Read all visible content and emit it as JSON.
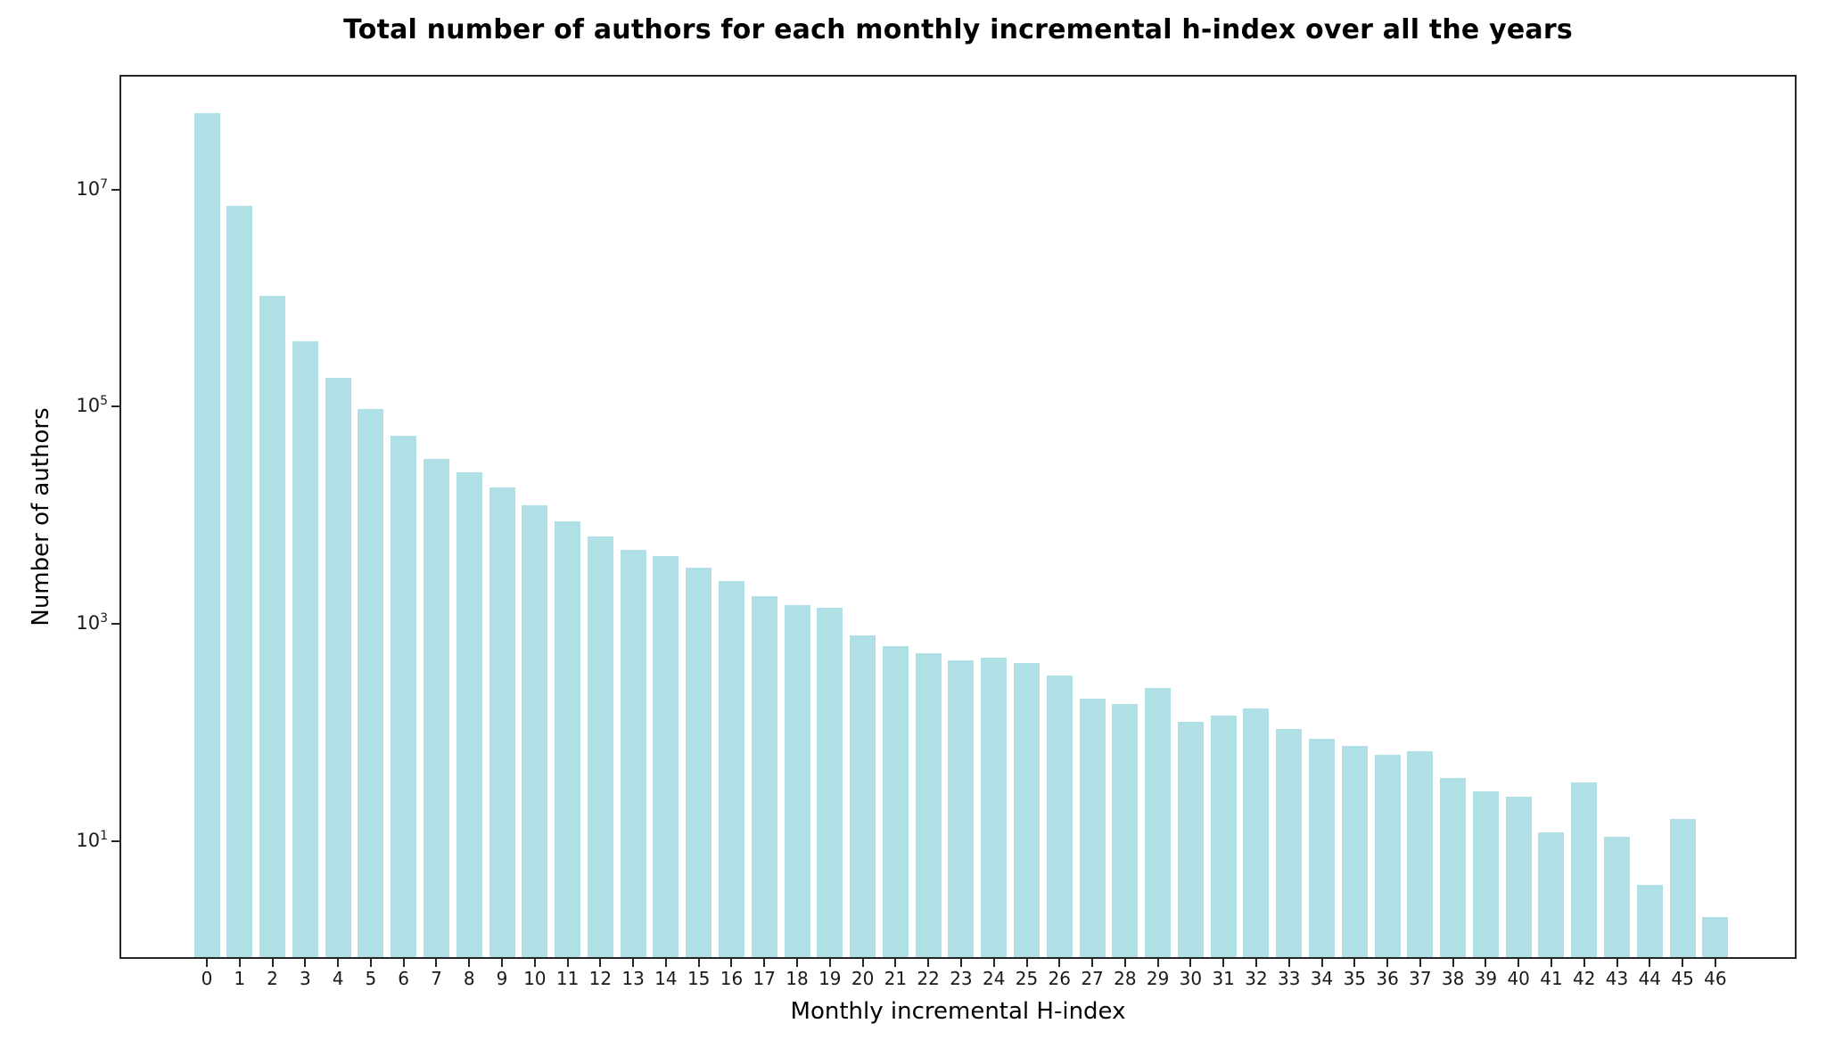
{
  "figure": {
    "title": "Total number of authors for each monthly incremental h-index over all the years"
  },
  "chart_data": {
    "type": "bar",
    "title": "Total number of authors for each monthly incremental h-index over all the years",
    "xlabel": "Monthly incremental H-index",
    "ylabel": "Number of authors",
    "yscale": "log",
    "ylim": [
      0.86,
      109000000
    ],
    "ytick_exponents": [
      7,
      5,
      3,
      1
    ],
    "grid": false,
    "legend": null,
    "bar_color": "#b0e0e6",
    "spine_color": "#262626",
    "categories": [
      "0",
      "1",
      "2",
      "3",
      "4",
      "5",
      "6",
      "7",
      "8",
      "9",
      "10",
      "11",
      "12",
      "13",
      "14",
      "15",
      "16",
      "17",
      "18",
      "19",
      "20",
      "21",
      "22",
      "23",
      "24",
      "25",
      "26",
      "27",
      "28",
      "29",
      "30",
      "31",
      "32",
      "33",
      "34",
      "35",
      "36",
      "37",
      "38",
      "39",
      "40",
      "41",
      "42",
      "43",
      "44",
      "45",
      "46"
    ],
    "values": [
      50000000,
      7000000,
      1050000,
      400000,
      185000,
      95000,
      54000,
      33000,
      25000,
      18000,
      12500,
      8800,
      6400,
      4800,
      4200,
      3300,
      2500,
      1800,
      1500,
      1400,
      790,
      630,
      540,
      460,
      490,
      440,
      335,
      205,
      185,
      260,
      126,
      143,
      167,
      108,
      88,
      75,
      63,
      67,
      38,
      29,
      26,
      12,
      35,
      11,
      4,
      16,
      2
    ]
  }
}
